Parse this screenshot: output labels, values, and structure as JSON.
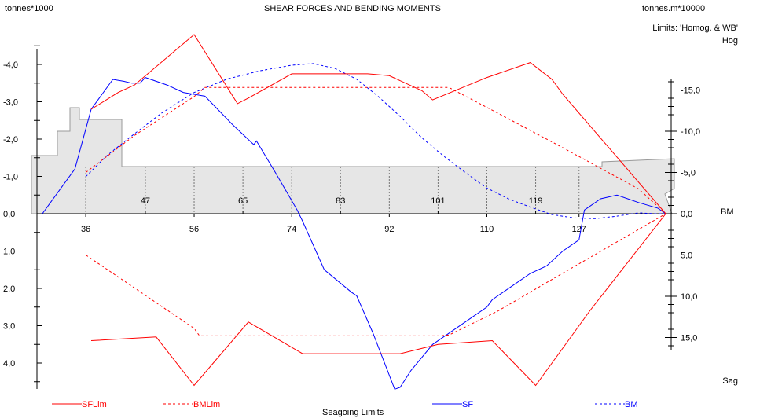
{
  "header": {
    "left_unit": "tonnes*1000",
    "title": "SHEAR FORCES AND BENDING MOMENTS",
    "right_unit": "tonnes.m*10000",
    "limits": "Limits: 'Homog. & WB'",
    "hog": "Hog",
    "sag": "Sag",
    "bm_axis": "BM",
    "footer": "Seagoing Limits"
  },
  "colors": {
    "sf": "#0000ff",
    "lim": "#ff0000",
    "hull_fill": "#e6e6e6",
    "hull_edge": "#9a9a9a"
  },
  "chart_data": {
    "type": "line",
    "x_axis": {
      "ticks": [
        36,
        56,
        74,
        92,
        110,
        127
      ],
      "upper_ticks": [
        47,
        65,
        83,
        101,
        119
      ],
      "range": [
        27,
        144
      ]
    },
    "y_left": {
      "ticks": [
        -4,
        -3,
        -2,
        -1,
        0,
        1,
        2,
        3,
        4
      ],
      "tick_labels": [
        "-4,0",
        "-3,0",
        "-2,0",
        "-1,0",
        "0,0",
        "1,0",
        "2,0",
        "3,0",
        "4,0"
      ],
      "range": [
        -4.82,
        4.82
      ]
    },
    "y_right": {
      "ticks": [
        15,
        10,
        5,
        0,
        -5,
        -10,
        -15
      ],
      "tick_labels": [
        "-15,0",
        "-10,0",
        "-5,0",
        "0,0",
        "5,0",
        "10,0",
        "15,0"
      ],
      "range": [
        -17,
        17
      ]
    },
    "legend": [
      "SFLim",
      "BMLim",
      "SF",
      "BM"
    ],
    "series": [
      {
        "name": "SF",
        "axis": "left",
        "points": [
          [
            28,
            0
          ],
          [
            29.5,
            -0.3
          ],
          [
            31.5,
            -0.7
          ],
          [
            34,
            -1.2
          ],
          [
            37,
            -2.8
          ],
          [
            39,
            -3.2
          ],
          [
            41,
            -3.6
          ],
          [
            43,
            -3.55
          ],
          [
            44.5,
            -3.5
          ],
          [
            46,
            -3.5
          ],
          [
            47,
            -3.65
          ],
          [
            51,
            -3.45
          ],
          [
            54,
            -3.25
          ],
          [
            58,
            -3.15
          ],
          [
            60,
            -2.85
          ],
          [
            63,
            -2.4
          ],
          [
            67,
            -1.85
          ],
          [
            67.5,
            -1.95
          ],
          [
            71,
            -1.1
          ],
          [
            75,
            -0.1
          ],
          [
            76,
            0.2
          ],
          [
            80,
            1.5
          ],
          [
            85,
            2.1
          ],
          [
            86,
            2.2
          ],
          [
            89,
            3.2
          ],
          [
            93,
            4.7
          ],
          [
            94,
            4.65
          ],
          [
            96,
            4.2
          ],
          [
            100,
            3.5
          ],
          [
            102,
            3.3
          ],
          [
            106,
            2.9
          ],
          [
            110,
            2.5
          ],
          [
            111,
            2.3
          ],
          [
            112,
            2.2
          ],
          [
            115,
            1.9
          ],
          [
            118,
            1.6
          ],
          [
            121,
            1.4
          ],
          [
            124,
            1.0
          ],
          [
            127,
            0.7
          ],
          [
            128,
            -0.1
          ],
          [
            131,
            -0.4
          ],
          [
            134,
            -0.5
          ],
          [
            138,
            -0.3
          ],
          [
            141.5,
            -0.15
          ],
          [
            143,
            0
          ]
        ]
      },
      {
        "name": "BM",
        "axis": "right",
        "points": [
          [
            36,
            4.5
          ],
          [
            40,
            7.1
          ],
          [
            45,
            9.7
          ],
          [
            50,
            12.2
          ],
          [
            56,
            14.7
          ],
          [
            62,
            16.3
          ],
          [
            68,
            17.3
          ],
          [
            74,
            18.0
          ],
          [
            78,
            18.2
          ],
          [
            82,
            17.6
          ],
          [
            86,
            16.3
          ],
          [
            90,
            14.2
          ],
          [
            94,
            11.8
          ],
          [
            98,
            9.2
          ],
          [
            102,
            7.0
          ],
          [
            106,
            5.0
          ],
          [
            110,
            3.1
          ],
          [
            114,
            1.8
          ],
          [
            118,
            0.8
          ],
          [
            122,
            -0.1
          ],
          [
            126,
            -0.5
          ],
          [
            130,
            -0.6
          ],
          [
            134,
            -0.3
          ],
          [
            138,
            0.1
          ],
          [
            141,
            0
          ],
          [
            143,
            0
          ]
        ]
      },
      {
        "name": "SFLim",
        "axis": "left",
        "points": [
          [
            37,
            -2.8
          ],
          [
            42,
            -3.25
          ],
          [
            45,
            -3.45
          ],
          [
            56,
            -4.8
          ],
          [
            64,
            -2.95
          ],
          [
            66,
            -3.1
          ],
          [
            74,
            -3.75
          ],
          [
            80,
            -3.75
          ],
          [
            88,
            -3.75
          ],
          [
            92,
            -3.7
          ],
          [
            98,
            -3.3
          ],
          [
            100,
            -3.05
          ],
          [
            110,
            -3.65
          ],
          [
            118,
            -4.05
          ],
          [
            122,
            -3.6
          ],
          [
            124,
            -3.2
          ],
          [
            143,
            0
          ],
          [
            129,
            2.6
          ],
          [
            124,
            3.6
          ],
          [
            119,
            4.6
          ],
          [
            111,
            3.4
          ],
          [
            101,
            3.5
          ],
          [
            94,
            3.75
          ],
          [
            76,
            3.75
          ],
          [
            66,
            2.9
          ],
          [
            56,
            4.6
          ],
          [
            49,
            3.3
          ],
          [
            37,
            3.4
          ]
        ]
      },
      {
        "name": "BMLim",
        "axis": "right",
        "points": [
          [
            36,
            5.0
          ],
          [
            45,
            9.5
          ],
          [
            56,
            14.2
          ],
          [
            58,
            15.3
          ],
          [
            66,
            15.3
          ],
          [
            84,
            15.3
          ],
          [
            101,
            15.3
          ],
          [
            103,
            15.3
          ],
          [
            112,
            12.2
          ],
          [
            124,
            8.0
          ],
          [
            138,
            3.0
          ],
          [
            143,
            0
          ],
          [
            138,
            -1.9
          ],
          [
            124,
            -7.2
          ],
          [
            112,
            -11.8
          ],
          [
            103,
            -14.7
          ],
          [
            101,
            -14.8
          ],
          [
            84,
            -14.8
          ],
          [
            66,
            -14.8
          ],
          [
            57,
            -14.8
          ],
          [
            56,
            -13.9
          ],
          [
            45,
            -9.0
          ],
          [
            36,
            -5.0
          ]
        ]
      }
    ]
  }
}
